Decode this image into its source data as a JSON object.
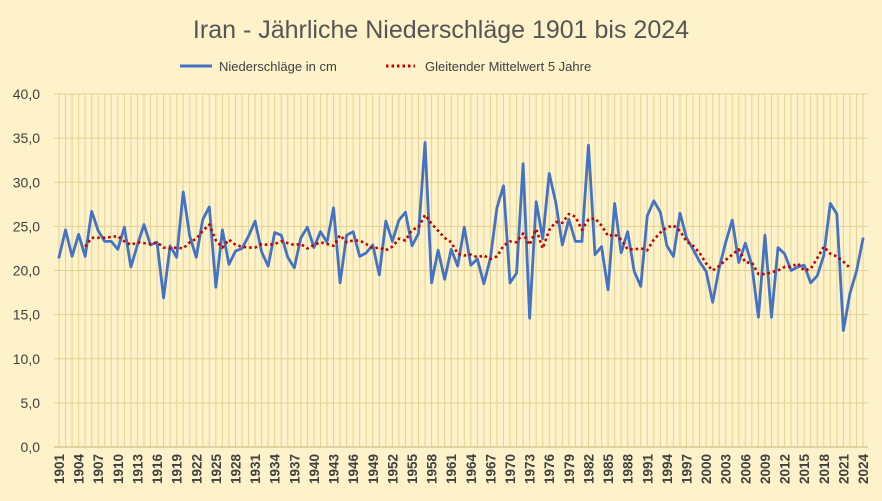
{
  "chart_data": {
    "type": "line",
    "title": "Iran - Jährliche Niederschläge 1901 bis 2024",
    "xlabel": "",
    "ylabel": "",
    "ylim": [
      0,
      40
    ],
    "y_ticks": [
      "0,0",
      "5,0",
      "10,0",
      "15,0",
      "20,0",
      "25,0",
      "30,0",
      "35,0",
      "40,0"
    ],
    "x_tick_labels": [
      "1901",
      "1904",
      "1907",
      "1910",
      "1913",
      "1916",
      "1919",
      "1922",
      "1925",
      "1928",
      "1931",
      "1934",
      "1937",
      "1940",
      "1943",
      "1946",
      "1949",
      "1952",
      "1955",
      "1958",
      "1961",
      "1964",
      "1967",
      "1970",
      "1973",
      "1976",
      "1979",
      "1982",
      "1985",
      "1988",
      "1991",
      "1994",
      "1997",
      "2000",
      "2003",
      "2006",
      "2009",
      "2012",
      "2015",
      "2018",
      "2021",
      "2024"
    ],
    "grid": "vertical and horizontal",
    "legend_position": "top-center",
    "x_start": 1901,
    "x_end": 2024,
    "series": [
      {
        "name": "Niederschläge in cm",
        "style": "solid",
        "color": "#4472c4",
        "values": [
          21.5,
          24.6,
          21.6,
          24.1,
          21.6,
          26.7,
          24.5,
          23.3,
          23.3,
          22.4,
          24.9,
          20.4,
          22.9,
          25.2,
          22.9,
          23.2,
          16.9,
          22.8,
          21.5,
          28.9,
          23.9,
          21.5,
          25.8,
          27.2,
          18.1,
          24.6,
          20.7,
          22.2,
          22.5,
          23.9,
          25.6,
          22.1,
          20.5,
          24.3,
          24.0,
          21.5,
          20.3,
          23.7,
          24.9,
          22.6,
          24.4,
          23.2,
          27.1,
          18.6,
          24.0,
          24.4,
          21.6,
          22.0,
          22.9,
          19.5,
          25.6,
          23.3,
          25.7,
          26.6,
          22.8,
          24.2,
          34.5,
          18.6,
          22.3,
          19.0,
          22.4,
          20.5,
          24.9,
          20.6,
          21.3,
          18.5,
          21.4,
          27.1,
          29.6,
          18.6,
          19.7,
          32.1,
          14.6,
          27.8,
          23.6,
          31.0,
          27.7,
          22.9,
          25.8,
          23.3,
          23.3,
          34.2,
          21.8,
          22.7,
          17.8,
          27.6,
          22.0,
          24.4,
          19.9,
          18.2,
          26.2,
          27.9,
          26.6,
          22.8,
          21.6,
          26.5,
          23.7,
          22.4,
          21.0,
          19.9,
          16.4,
          20.3,
          23.2,
          25.7,
          20.9,
          23.1,
          20.6,
          14.7,
          24.0,
          14.7,
          22.6,
          21.9,
          20.0,
          20.4,
          20.6,
          18.6,
          19.4,
          21.7,
          27.6,
          26.4,
          13.2,
          17.4,
          19.9,
          23.6
        ]
      },
      {
        "name": "Gleitender Mittelwert 5 Jahre",
        "style": "dotted",
        "color": "#c00000",
        "start_year": 1905,
        "values": [
          22.7,
          23.7,
          23.7,
          23.7,
          23.8,
          23.9,
          23.3,
          22.9,
          23.2,
          23.1,
          23.0,
          23.2,
          22.6,
          22.5,
          22.6,
          22.5,
          23.2,
          23.6,
          24.5,
          25.2,
          23.4,
          22.6,
          23.5,
          22.9,
          22.7,
          22.6,
          22.6,
          23.0,
          22.9,
          23.0,
          23.3,
          23.1,
          22.9,
          23.0,
          22.5,
          22.9,
          23.2,
          23.0,
          22.8,
          24.0,
          23.2,
          23.4,
          23.4,
          23.0,
          22.5,
          22.6,
          22.3,
          22.7,
          23.6,
          23.4,
          24.6,
          24.9,
          26.3,
          25.3,
          24.5,
          23.7,
          23.2,
          21.9,
          21.7,
          21.8,
          21.5,
          21.7,
          21.3,
          21.6,
          22.8,
          23.3,
          23.2,
          24.2,
          22.9,
          24.7,
          22.5,
          24.6,
          25.5,
          25.4,
          26.4,
          26.1,
          24.6,
          25.8,
          25.9,
          25.1,
          23.9,
          24.1,
          23.5,
          22.4,
          22.4,
          22.5,
          22.3,
          23.5,
          24.3,
          24.9,
          25.1,
          24.5,
          23.3,
          22.8,
          22.0,
          20.8,
          20.0,
          20.5,
          21.2,
          21.8,
          22.4,
          20.9,
          20.9,
          19.6,
          19.6,
          19.8,
          20.0,
          20.4,
          20.4,
          20.8,
          20.0,
          20.2,
          21.4,
          22.7,
          21.9,
          21.6,
          21.0,
          20.3
        ]
      }
    ]
  },
  "colors": {
    "background": "#fdf2c9",
    "title": "#555555",
    "grid": "#e3d294",
    "axis_text": "#404040"
  }
}
